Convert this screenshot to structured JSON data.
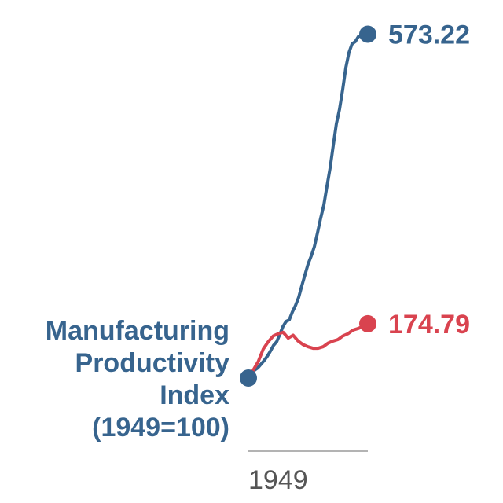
{
  "chart_data": {
    "type": "line",
    "title": "",
    "xlabel": "",
    "ylabel": "",
    "x_ticks": [
      "1949"
    ],
    "y_scale": "linear",
    "grid": false,
    "legend": "none",
    "series_label": "Manufacturing\nProductivity\nIndex\n(1949=100)",
    "series": [
      {
        "name": "Manufacturing Productivity Index (1949=100)",
        "color": "#37648e",
        "end_label": "573.22",
        "values": [
          100,
          105,
          111,
          114,
          119,
          124,
          130,
          137,
          145,
          150,
          160,
          171,
          178,
          180,
          191,
          200,
          211,
          227,
          242,
          257,
          268,
          281,
          300,
          320,
          338,
          364,
          389,
          420,
          450,
          470,
          497,
          527,
          548,
          560,
          563,
          570,
          571,
          568,
          573.22
        ]
      },
      {
        "name": "",
        "color": "#d9434f",
        "end_label": "174.79",
        "values": [
          100,
          111,
          123,
          140,
          150,
          158,
          161,
          163,
          155,
          159,
          151,
          146,
          143,
          141,
          141,
          143,
          148,
          151,
          153,
          158,
          161,
          166,
          168,
          171,
          174.79
        ]
      }
    ],
    "ylim": [
      100,
      590
    ]
  }
}
